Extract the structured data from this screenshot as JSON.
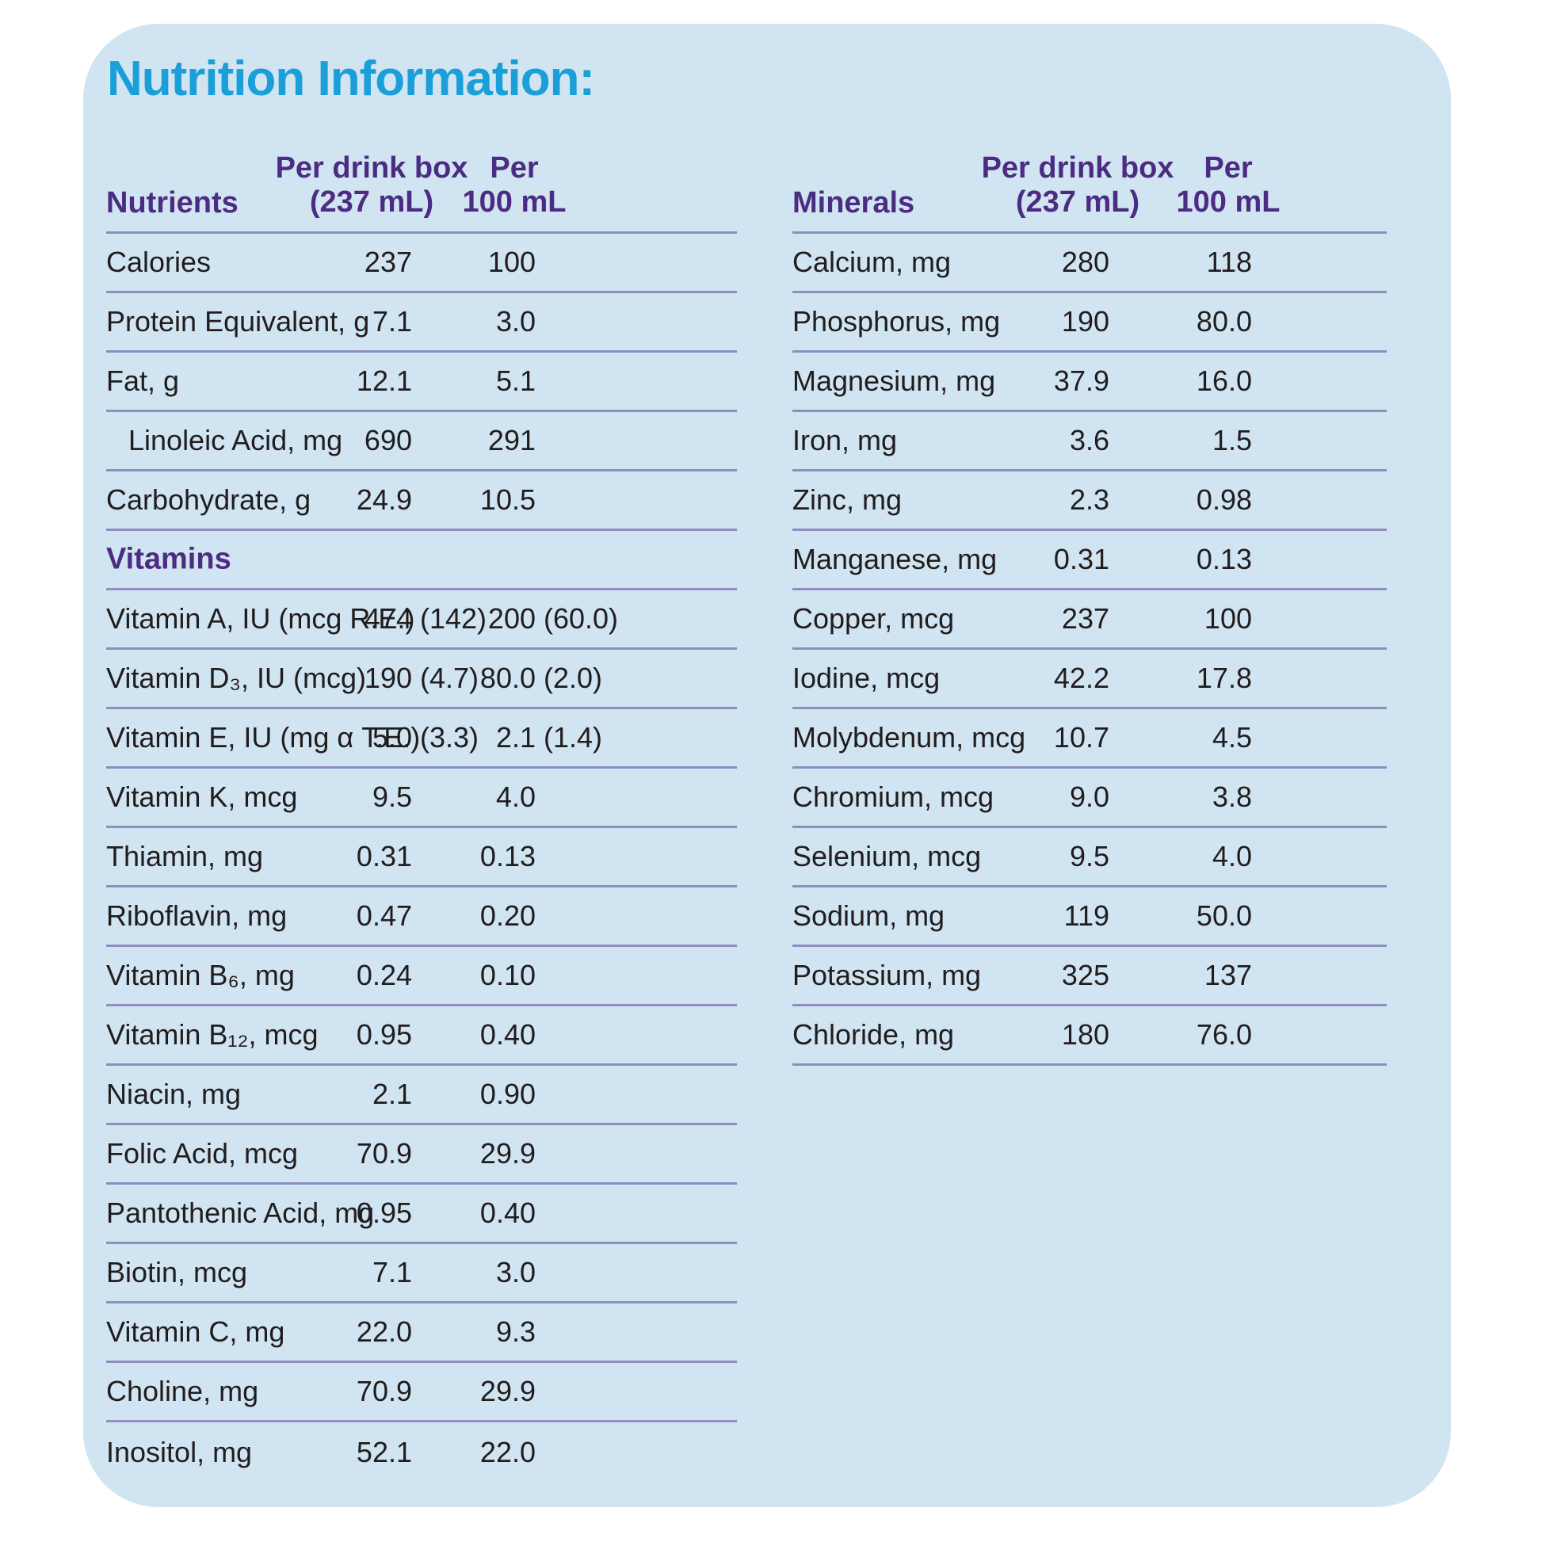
{
  "page": {
    "title": "Nutrition Information:"
  },
  "colors": {
    "card_background": "#d1e4f1",
    "title": "#1b9fd9",
    "heading_purple": "#4b2c82",
    "divider": "#8e8ec0",
    "body_text": "#211d1e"
  },
  "tables": [
    {
      "col_group_label": "Nutrients",
      "col1_header_line1": "Per drink box",
      "col1_header_line2": "(237 mL)",
      "col2_header_line1": "Per",
      "col2_header_line2": "100 mL",
      "last_divider": false,
      "rows": [
        {
          "label": "Calories",
          "v1": "237",
          "p1": "",
          "v2": "100",
          "p2": ""
        },
        {
          "label": "Protein Equivalent, g",
          "v1": "7.1",
          "p1": "",
          "v2": "3.0",
          "p2": ""
        },
        {
          "label": "Fat, g",
          "v1": "12.1",
          "p1": "",
          "v2": "5.1",
          "p2": ""
        },
        {
          "label": "Linoleic Acid, mg",
          "indent": true,
          "v1": "690",
          "p1": "",
          "v2": "291",
          "p2": ""
        },
        {
          "label": "Carbohydrate, g",
          "v1": "24.9",
          "p1": "",
          "v2": "10.5",
          "p2": ""
        },
        {
          "section": "Vitamins"
        },
        {
          "label": "Vitamin A, IU (mcg R.E.)",
          "v1": "474",
          "p1": "(142)",
          "v2": "200",
          "p2": "(60.0)"
        },
        {
          "label": "Vitamin D₃, IU (mcg)",
          "v1": "190",
          "p1": "(4.7)",
          "v2": "80.0",
          "p2": "(2.0)"
        },
        {
          "label": "Vitamin E, IU (mg α T.E.)",
          "v1": "5.0",
          "p1": "(3.3)",
          "v2": "2.1",
          "p2": "(1.4)"
        },
        {
          "label": "Vitamin K, mcg",
          "v1": "9.5",
          "p1": "",
          "v2": "4.0",
          "p2": ""
        },
        {
          "label": "Thiamin, mg",
          "v1": "0.31",
          "p1": "",
          "v2": "0.13",
          "p2": ""
        },
        {
          "label": "Riboflavin, mg",
          "v1": "0.47",
          "p1": "",
          "v2": "0.20",
          "p2": ""
        },
        {
          "label": "Vitamin B₆, mg",
          "v1": "0.24",
          "p1": "",
          "v2": "0.10",
          "p2": ""
        },
        {
          "label": "Vitamin B₁₂, mcg",
          "v1": "0.95",
          "p1": "",
          "v2": "0.40",
          "p2": ""
        },
        {
          "label": "Niacin, mg",
          "v1": "2.1",
          "p1": "",
          "v2": "0.90",
          "p2": ""
        },
        {
          "label": "Folic Acid, mcg",
          "v1": "70.9",
          "p1": "",
          "v2": "29.9",
          "p2": ""
        },
        {
          "label": "Pantothenic Acid, mg",
          "v1": "0.95",
          "p1": "",
          "v2": "0.40",
          "p2": ""
        },
        {
          "label": "Biotin, mcg",
          "v1": "7.1",
          "p1": "",
          "v2": "3.0",
          "p2": ""
        },
        {
          "label": "Vitamin C, mg",
          "v1": "22.0",
          "p1": "",
          "v2": "9.3",
          "p2": ""
        },
        {
          "label": "Choline, mg",
          "v1": "70.9",
          "p1": "",
          "v2": "29.9",
          "p2": ""
        },
        {
          "label": "Inositol, mg",
          "v1": "52.1",
          "p1": "",
          "v2": "22.0",
          "p2": ""
        }
      ]
    },
    {
      "col_group_label": "Minerals",
      "col1_header_line1": "Per drink box",
      "col1_header_line2": "(237 mL)",
      "col2_header_line1": "Per",
      "col2_header_line2": "100 mL",
      "last_divider": true,
      "rows": [
        {
          "label": "Calcium, mg",
          "v1": "280",
          "p1": "",
          "v2": "118",
          "p2": ""
        },
        {
          "label": "Phosphorus, mg",
          "v1": "190",
          "p1": "",
          "v2": "80.0",
          "p2": ""
        },
        {
          "label": "Magnesium, mg",
          "v1": "37.9",
          "p1": "",
          "v2": "16.0",
          "p2": ""
        },
        {
          "label": "Iron, mg",
          "v1": "3.6",
          "p1": "",
          "v2": "1.5",
          "p2": ""
        },
        {
          "label": "Zinc, mg",
          "v1": "2.3",
          "p1": "",
          "v2": "0.98",
          "p2": ""
        },
        {
          "label": "Manganese, mg",
          "v1": "0.31",
          "p1": "",
          "v2": "0.13",
          "p2": ""
        },
        {
          "label": "Copper, mcg",
          "v1": "237",
          "p1": "",
          "v2": "100",
          "p2": ""
        },
        {
          "label": "Iodine, mcg",
          "v1": "42.2",
          "p1": "",
          "v2": "17.8",
          "p2": ""
        },
        {
          "label": "Molybdenum, mcg",
          "v1": "10.7",
          "p1": "",
          "v2": "4.5",
          "p2": ""
        },
        {
          "label": "Chromium, mcg",
          "v1": "9.0",
          "p1": "",
          "v2": "3.8",
          "p2": ""
        },
        {
          "label": "Selenium, mcg",
          "v1": "9.5",
          "p1": "",
          "v2": "4.0",
          "p2": ""
        },
        {
          "label": "Sodium, mg",
          "v1": "119",
          "p1": "",
          "v2": "50.0",
          "p2": ""
        },
        {
          "label": "Potassium, mg",
          "v1": "325",
          "p1": "",
          "v2": "137",
          "p2": ""
        },
        {
          "label": "Chloride, mg",
          "v1": "180",
          "p1": "",
          "v2": "76.0",
          "p2": ""
        }
      ]
    }
  ]
}
